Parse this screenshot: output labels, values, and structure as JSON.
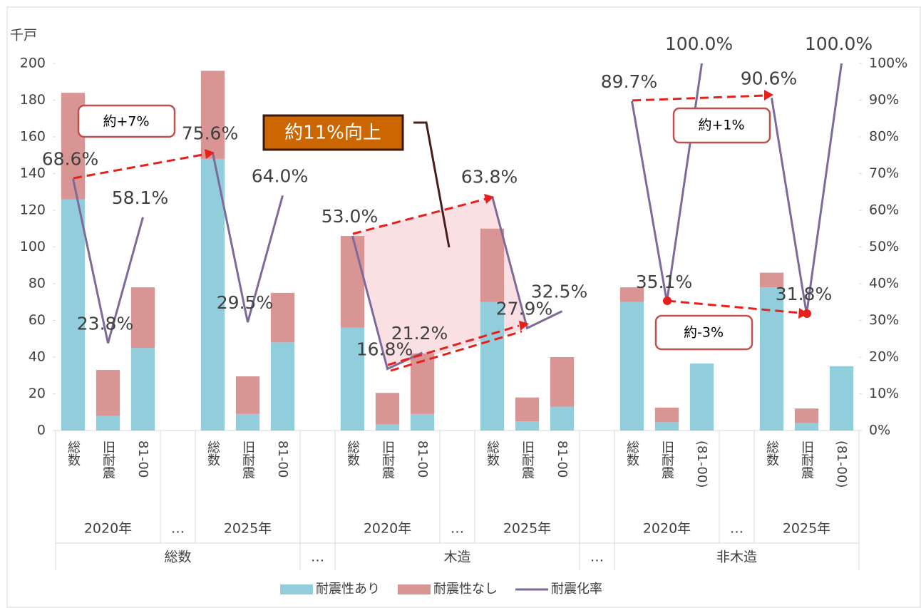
{
  "chart_data": {
    "type": "bar-line",
    "y_label": "千戸",
    "categories": [
      "総数",
      "旧耐震",
      "81-00",
      null,
      "総数",
      "旧耐震",
      "81-00",
      null,
      "総数",
      "旧耐震",
      "81-00",
      null,
      "総数",
      "旧耐震",
      "81-00",
      null,
      "総数",
      "旧耐震",
      "(81-00)",
      null,
      "総数",
      "旧耐震",
      "(81-00)"
    ],
    "subgroups": [
      "2020年",
      "…",
      "2025年",
      "2020年",
      "…",
      "2025年",
      "2020年",
      "…",
      "2025年"
    ],
    "groups": [
      "総数",
      "…",
      "木造",
      "…",
      "非木造"
    ],
    "series": [
      {
        "name": "耐震性あり",
        "color": "#92cddc",
        "values": [
          126,
          8,
          45,
          null,
          148,
          9,
          48,
          null,
          56,
          3.5,
          9,
          null,
          70,
          5,
          13,
          null,
          70,
          4.5,
          36.5,
          null,
          78,
          4,
          35
        ]
      },
      {
        "name": "耐震性なし",
        "color": "#d99594",
        "values": [
          58,
          25,
          33,
          null,
          48,
          20.5,
          27,
          null,
          50,
          17,
          33,
          null,
          40,
          13,
          27,
          null,
          8,
          8,
          0,
          null,
          8,
          8,
          0
        ]
      },
      {
        "name": "耐震化率",
        "color": "#7e6a9a",
        "axis": "y2",
        "values": [
          68.6,
          23.8,
          58.1,
          null,
          75.6,
          29.5,
          64.0,
          null,
          53.0,
          16.8,
          21.2,
          null,
          63.8,
          27.9,
          32.5,
          null,
          89.7,
          35.1,
          100.0,
          null,
          90.6,
          31.8,
          100.0
        ],
        "value_labels": [
          "68.6%",
          "23.8%",
          "58.1%",
          null,
          "75.6%",
          "29.5%",
          "64.0%",
          null,
          "53.0%",
          "16.8%",
          "21.2%",
          null,
          "63.8%",
          "27.9%",
          "32.5%",
          null,
          "89.7%",
          "35.1%",
          "100.0%",
          null,
          "90.6%",
          "31.8%",
          "100.0%"
        ]
      }
    ],
    "ylim": [
      0,
      200
    ],
    "yticks": [
      0,
      20,
      40,
      60,
      80,
      100,
      120,
      140,
      160,
      180,
      200
    ],
    "y2lim": [
      0,
      100
    ],
    "y2ticks": [
      {
        "value": 0,
        "label": "0%"
      },
      {
        "value": 10,
        "label": "10%"
      },
      {
        "value": 20,
        "label": "20%"
      },
      {
        "value": 30,
        "label": "30%"
      },
      {
        "value": 40,
        "label": "40%"
      },
      {
        "value": 50,
        "label": "50%"
      },
      {
        "value": 60,
        "label": "60%"
      },
      {
        "value": 70,
        "label": "70%"
      },
      {
        "value": 80,
        "label": "80%"
      },
      {
        "value": 90,
        "label": "90%"
      },
      {
        "value": 100,
        "label": "100%"
      }
    ],
    "annotations": [
      "約+7%",
      "約11%向上",
      "約+1%",
      "約-3%"
    ],
    "legend": "bottom"
  }
}
